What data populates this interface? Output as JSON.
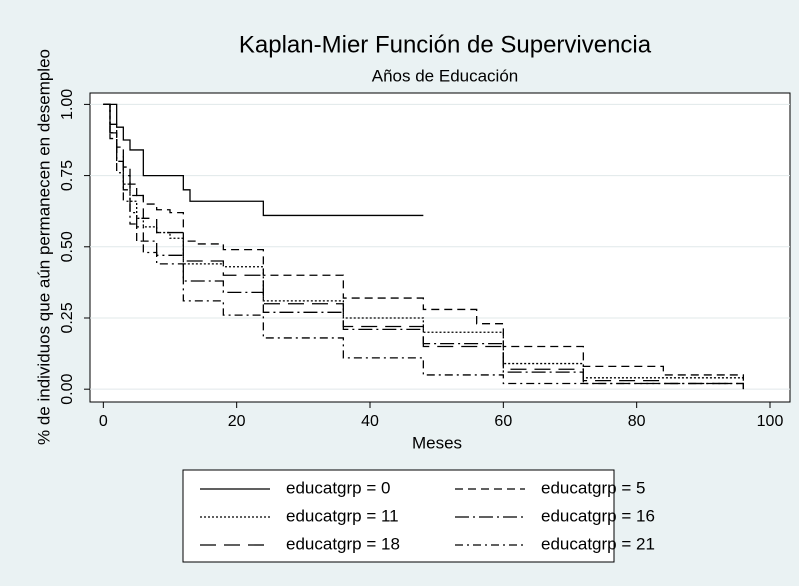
{
  "chart_data": {
    "type": "line",
    "step": true,
    "title": "Kaplan-Mier Función de Supervivencia",
    "subtitle": "Años de Educación",
    "xlabel": "Meses",
    "ylabel": "% de individuos que aún permanecen en desempleo",
    "xlim": [
      -2,
      103
    ],
    "ylim": [
      -0.045,
      1.04
    ],
    "xticks": [
      0,
      20,
      40,
      60,
      80,
      100
    ],
    "yticks": [
      {
        "value": 0,
        "label": "0.00"
      },
      {
        "value": 0.25,
        "label": "0.25"
      },
      {
        "value": 0.5,
        "label": "0.50"
      },
      {
        "value": 0.75,
        "label": "0.75"
      },
      {
        "value": 1,
        "label": "1.00"
      }
    ],
    "grid": true,
    "series": [
      {
        "name": "educatgrp = 0",
        "color": "#000000",
        "dash": "none",
        "x": [
          0,
          2,
          3,
          4,
          6,
          12,
          13,
          24,
          48
        ],
        "values": [
          1,
          0.92,
          0.875,
          0.84,
          0.75,
          0.7,
          0.66,
          0.61,
          0.61
        ]
      },
      {
        "name": "educatgrp = 5",
        "color": "#000000",
        "dash": "8,5",
        "x": [
          0,
          1,
          2,
          3,
          4,
          5,
          6,
          8,
          10,
          12,
          14,
          18,
          24,
          36,
          48,
          56,
          60,
          72,
          84,
          96
        ],
        "values": [
          1,
          0.93,
          0.85,
          0.78,
          0.72,
          0.68,
          0.65,
          0.63,
          0.62,
          0.52,
          0.51,
          0.49,
          0.4,
          0.32,
          0.28,
          0.23,
          0.15,
          0.08,
          0.05,
          0.03
        ]
      },
      {
        "name": "educatgrp = 11",
        "color": "#000000",
        "dash": "2,2",
        "x": [
          0,
          1,
          2,
          3,
          4,
          5,
          6,
          8,
          10,
          12,
          18,
          24,
          36,
          48,
          60,
          72,
          96
        ],
        "values": [
          1,
          0.9,
          0.8,
          0.72,
          0.66,
          0.6,
          0.57,
          0.55,
          0.53,
          0.44,
          0.43,
          0.31,
          0.25,
          0.2,
          0.09,
          0.04,
          0.03
        ]
      },
      {
        "name": "educatgrp = 16",
        "color": "#000000",
        "dash": "14,4,2,4",
        "x": [
          0,
          1,
          2,
          3,
          4,
          5,
          6,
          8,
          12,
          18,
          24,
          36,
          48,
          60,
          72,
          96
        ],
        "values": [
          1,
          0.9,
          0.8,
          0.7,
          0.62,
          0.57,
          0.52,
          0.47,
          0.38,
          0.34,
          0.27,
          0.21,
          0.16,
          0.06,
          0.02,
          0
        ]
      },
      {
        "name": "educatgrp = 18",
        "color": "#000000",
        "dash": "16,8",
        "x": [
          0,
          1,
          2,
          3,
          4,
          6,
          8,
          12,
          18,
          24,
          36,
          48,
          60,
          72,
          84,
          96
        ],
        "values": [
          1,
          0.9,
          0.82,
          0.75,
          0.68,
          0.6,
          0.55,
          0.45,
          0.4,
          0.3,
          0.22,
          0.15,
          0.07,
          0.03,
          0.02,
          0
        ]
      },
      {
        "name": "educatgrp = 21",
        "color": "#000000",
        "dash": "8,4,2,4",
        "x": [
          0,
          1,
          2,
          3,
          4,
          5,
          6,
          8,
          12,
          18,
          24,
          36,
          48,
          60,
          96
        ],
        "values": [
          1,
          0.88,
          0.76,
          0.66,
          0.58,
          0.52,
          0.48,
          0.44,
          0.31,
          0.26,
          0.18,
          0.11,
          0.05,
          0.02,
          0.02
        ]
      }
    ]
  }
}
